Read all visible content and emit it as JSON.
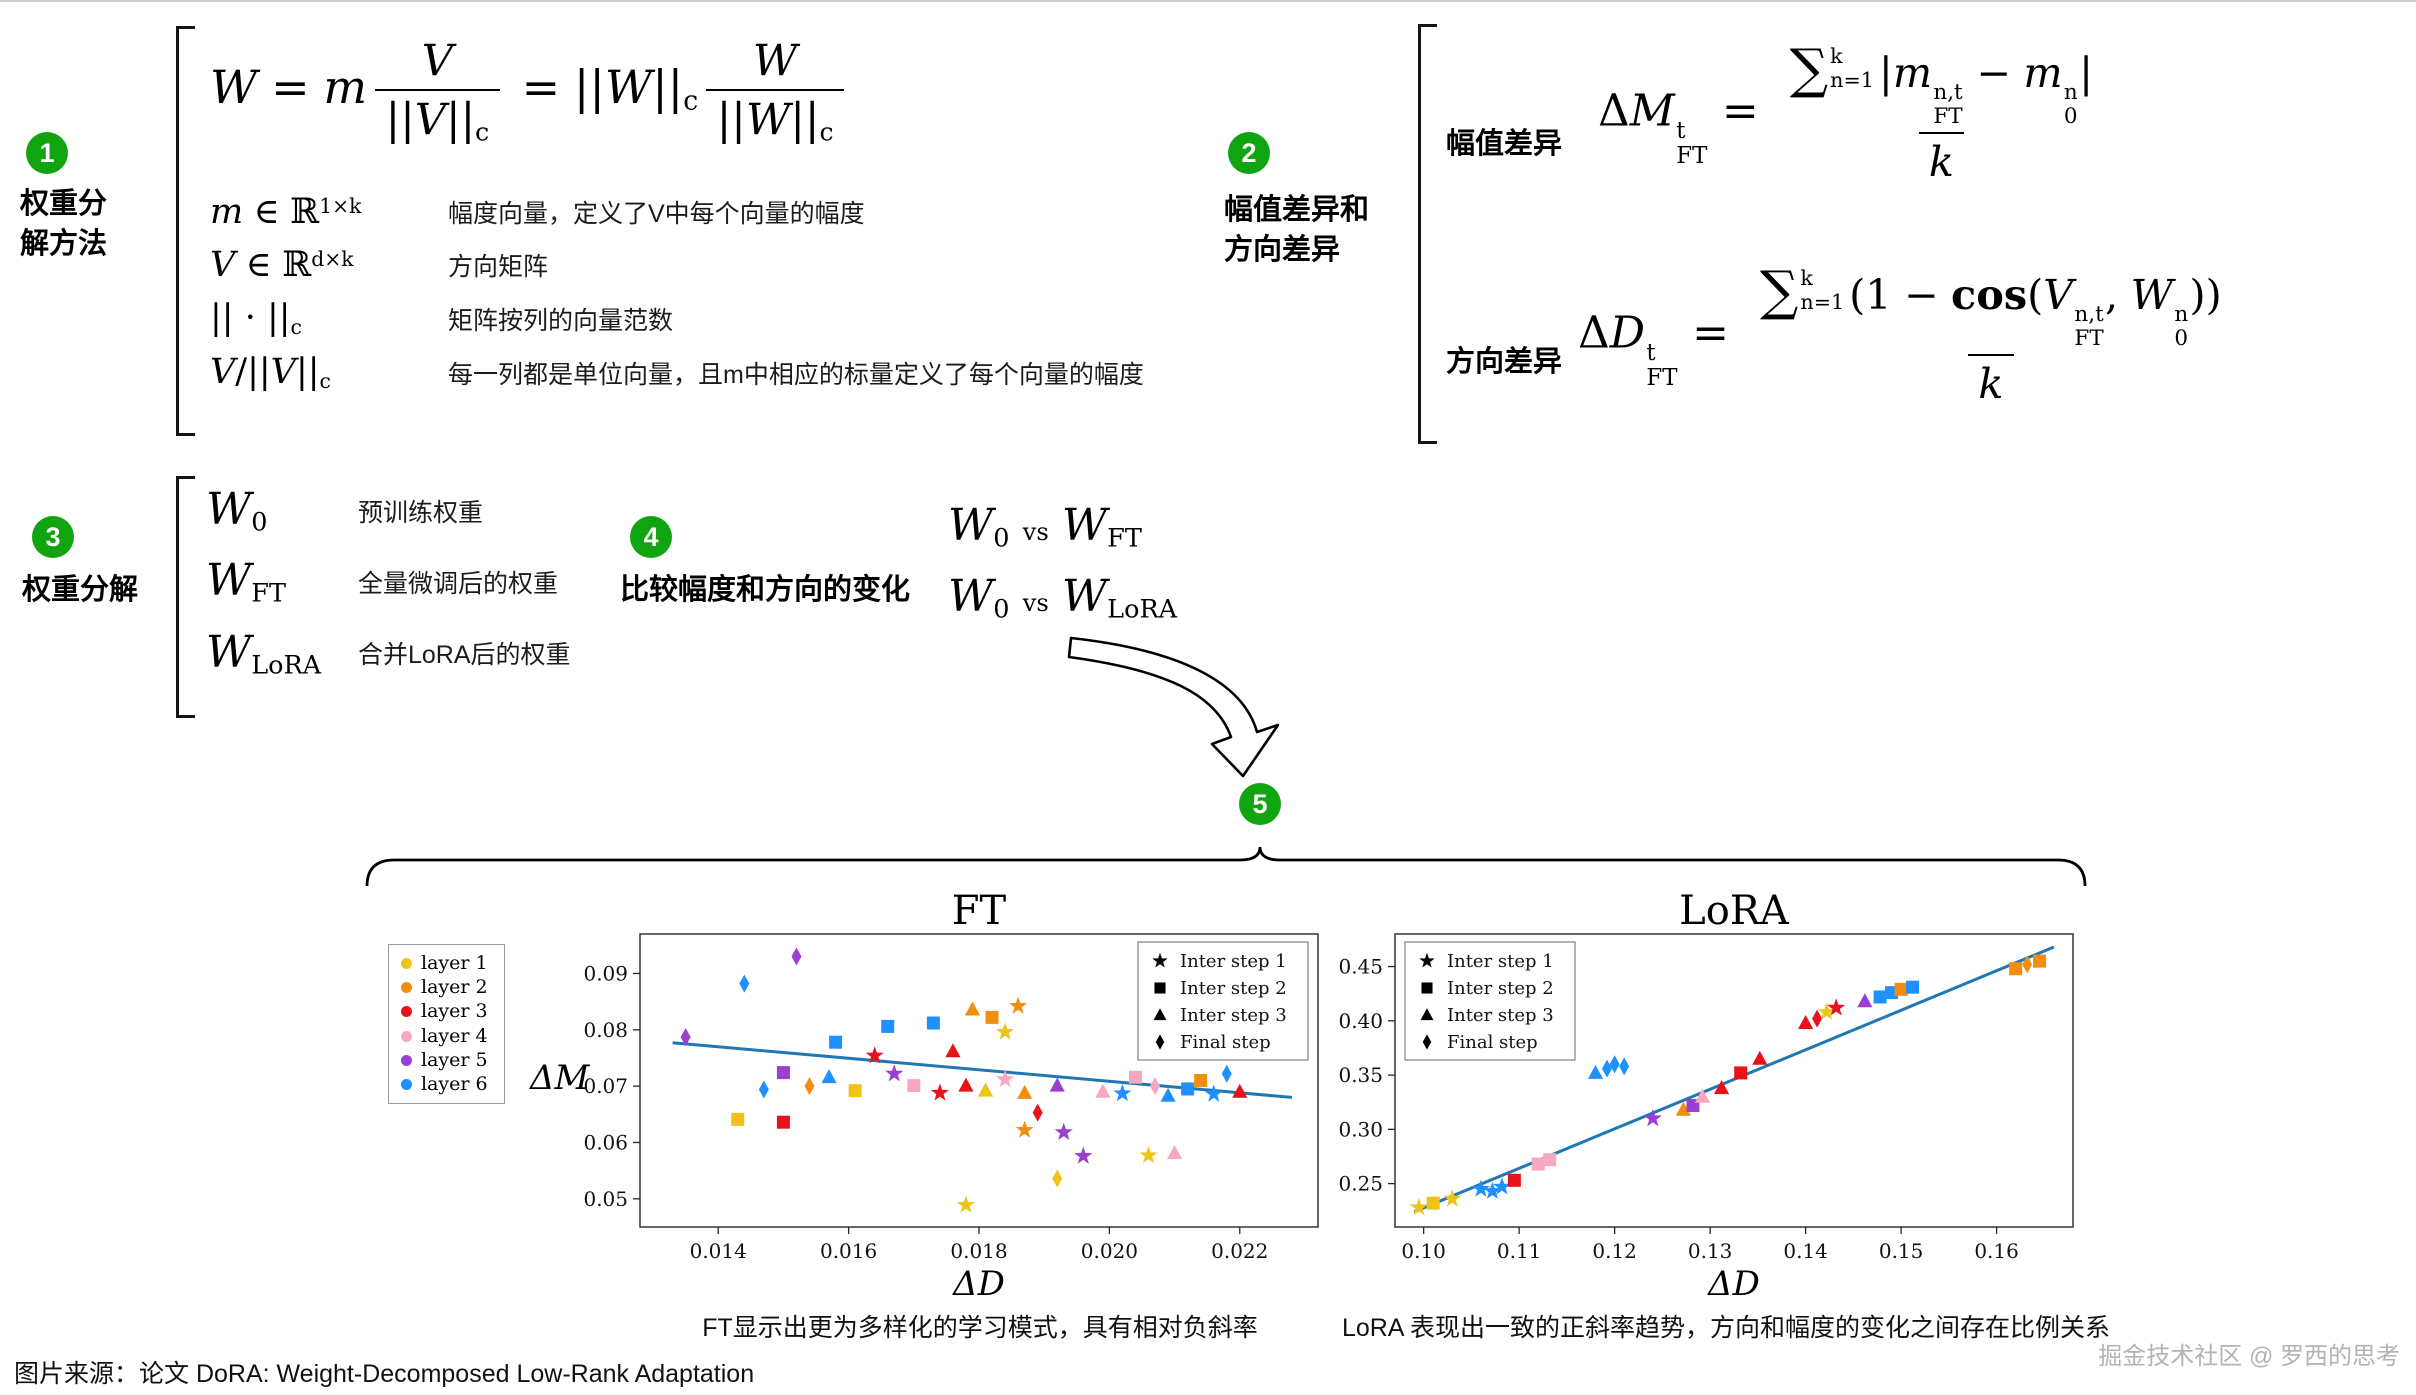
{
  "colors": {
    "badge_green": "#11a411",
    "trend_blue": "#1f77b4",
    "bracket": "#151515"
  },
  "sections": {
    "s1": {
      "badge": "1",
      "title": "权重分\n解方法",
      "formula": [
        {
          "v": "W"
        },
        {
          "sp": 1
        },
        {
          "t": "="
        },
        {
          "sp": 1
        },
        {
          "v": "m"
        },
        {
          "frac": {
            "n": [
              {
                "v": "V"
              }
            ],
            "d": [
              {
                "t": "||"
              },
              {
                "v": "V"
              },
              {
                "t": "||"
              },
              {
                "sub": "c"
              }
            ]
          }
        },
        {
          "sp": 1
        },
        {
          "t": "="
        },
        {
          "sp": 1
        },
        {
          "t": "||"
        },
        {
          "v": "W"
        },
        {
          "t": "||"
        },
        {
          "sub": "c"
        },
        {
          "frac": {
            "n": [
              {
                "v": "W"
              }
            ],
            "d": [
              {
                "t": "||"
              },
              {
                "v": "W"
              },
              {
                "t": "||"
              },
              {
                "sub": "c"
              }
            ]
          }
        }
      ],
      "rows": [
        {
          "math": [
            {
              "v": "m"
            },
            {
              "sp": 1
            },
            {
              "t": "∈"
            },
            {
              "sp": 1
            },
            {
              "t": "ℝ"
            },
            {
              "sup": "1×k"
            }
          ],
          "desc": "幅度向量，定义了V中每个向量的幅度"
        },
        {
          "math": [
            {
              "v": "V"
            },
            {
              "sp": 1
            },
            {
              "t": "∈"
            },
            {
              "sp": 1
            },
            {
              "t": "ℝ"
            },
            {
              "sup": "d×k"
            }
          ],
          "desc": "方向矩阵"
        },
        {
          "math": [
            {
              "t": "|| · ||"
            },
            {
              "sub": "c"
            }
          ],
          "desc": "矩阵按列的向量范数"
        },
        {
          "math": [
            {
              "v": "V"
            },
            {
              "t": "/||"
            },
            {
              "v": "V"
            },
            {
              "t": "||"
            },
            {
              "sub": "c"
            }
          ],
          "desc": "每一列都是单位向量，且m中相应的标量定义了每个向量的幅度"
        }
      ]
    },
    "s2": {
      "badge": "2",
      "title": "幅值差异和\n方向差异",
      "mag_label": "幅值差异",
      "dir_label": "方向差异",
      "mag_formula": [
        {
          "t": "Δ"
        },
        {
          "v": "M"
        },
        {
          "ss": [
            "t",
            "FT"
          ]
        },
        {
          "sp": 1
        },
        {
          "t": "="
        },
        {
          "sp": 1
        },
        {
          "frac": {
            "n": [
              {
                "sum": {
                  "sup": "k",
                  "sub": "n=1"
                }
              },
              {
                "t": "|"
              },
              {
                "v": "m"
              },
              {
                "ss": [
                  "n,t",
                  "FT"
                ]
              },
              {
                "sp": 1
              },
              {
                "t": "−"
              },
              {
                "sp": 1
              },
              {
                "v": "m"
              },
              {
                "ss": [
                  "n",
                  "0"
                ]
              },
              {
                "t": "|"
              }
            ],
            "d": [
              {
                "v": "k"
              }
            ]
          }
        }
      ],
      "dir_formula": [
        {
          "t": "Δ"
        },
        {
          "v": "D"
        },
        {
          "ss": [
            "t",
            "FT"
          ]
        },
        {
          "sp": 1
        },
        {
          "t": "="
        },
        {
          "sp": 1
        },
        {
          "frac": {
            "n": [
              {
                "sum": {
                  "sup": "k",
                  "sub": "n=1"
                }
              },
              {
                "t": "(1"
              },
              {
                "sp": 1
              },
              {
                "t": "−"
              },
              {
                "sp": 1
              },
              {
                "b": "cos"
              },
              {
                "t": "("
              },
              {
                "v": "V"
              },
              {
                "ss": [
                  "n,t",
                  "FT"
                ]
              },
              {
                "t": ","
              },
              {
                "sp": 1
              },
              {
                "v": "W"
              },
              {
                "ss": [
                  "n",
                  "0"
                ]
              },
              {
                "t": "))"
              }
            ],
            "d": [
              {
                "v": "k"
              }
            ]
          }
        }
      ]
    },
    "s3": {
      "badge": "3",
      "title": "权重分解",
      "rows": [
        {
          "math": [
            {
              "v": "W"
            },
            {
              "sub": "0"
            }
          ],
          "desc": "预训练权重"
        },
        {
          "math": [
            {
              "v": "W"
            },
            {
              "sub": "FT"
            }
          ],
          "desc": "全量微调后的权重"
        },
        {
          "math": [
            {
              "v": "W"
            },
            {
              "sub": "LoRA"
            }
          ],
          "desc": "合并LoRA后的权重"
        }
      ]
    },
    "s4": {
      "badge": "4",
      "title": "比较幅度和方向的变化",
      "comparisons": [
        [
          {
            "v": "W"
          },
          {
            "sub": "0"
          },
          {
            "sp": 1
          },
          {
            "s": "vs"
          },
          {
            "sp": 1
          },
          {
            "v": "W"
          },
          {
            "sub": "FT"
          }
        ],
        [
          {
            "v": "W"
          },
          {
            "sub": "0"
          },
          {
            "sp": 1
          },
          {
            "s": "vs"
          },
          {
            "sp": 1
          },
          {
            "v": "W"
          },
          {
            "sub": "LoRA"
          }
        ]
      ]
    },
    "s5": {
      "badge": "5"
    }
  },
  "legend": {
    "layers": [
      {
        "label": "layer 1",
        "color": "#efc319"
      },
      {
        "label": "layer 2",
        "color": "#f28d0e"
      },
      {
        "label": "layer 3",
        "color": "#e8131a"
      },
      {
        "label": "layer 4",
        "color": "#f7a8c0"
      },
      {
        "label": "layer 5",
        "color": "#9b3fd1"
      },
      {
        "label": "layer 6",
        "color": "#1e90ff"
      }
    ],
    "steps": [
      {
        "label": "Inter step 1",
        "marker": "star"
      },
      {
        "label": "Inter step 2",
        "marker": "square"
      },
      {
        "label": "Inter step 3",
        "marker": "triangle"
      },
      {
        "label": "Final step",
        "marker": "diamond"
      }
    ]
  },
  "chart_data": [
    {
      "type": "scatter",
      "title": "FT",
      "xlabel": "ΔD",
      "ylabel": "ΔM",
      "xlim": [
        0.0128,
        0.0232
      ],
      "ylim": [
        0.045,
        0.097
      ],
      "xticks": [
        0.014,
        0.016,
        0.018,
        0.02,
        0.022
      ],
      "xtick_labels": [
        "0.014",
        "0.016",
        "0.018",
        "0.020",
        "0.022"
      ],
      "yticks": [
        0.05,
        0.06,
        0.07,
        0.08,
        0.09
      ],
      "ytick_labels": [
        "0.05",
        "0.06",
        "0.07",
        "0.08",
        "0.09"
      ],
      "trend_line": {
        "from": [
          0.0133,
          0.0777
        ],
        "to": [
          0.0228,
          0.068
        ]
      },
      "marker_legend_pos": "upper-right",
      "show_layer_legend": true,
      "caption": "FT显示出更为多样化的学习模式，具有相对负斜率",
      "points": [
        [
          0.0152,
          0.093,
          4,
          3
        ],
        [
          0.0144,
          0.0882,
          5,
          3
        ],
        [
          0.0135,
          0.0787,
          4,
          3
        ],
        [
          0.0158,
          0.0778,
          5,
          1
        ],
        [
          0.0166,
          0.0806,
          5,
          1
        ],
        [
          0.0173,
          0.0812,
          5,
          1
        ],
        [
          0.0179,
          0.0836,
          1,
          2
        ],
        [
          0.0182,
          0.0822,
          1,
          1
        ],
        [
          0.0186,
          0.0842,
          1,
          0
        ],
        [
          0.0184,
          0.0796,
          0,
          0
        ],
        [
          0.0176,
          0.0762,
          2,
          2
        ],
        [
          0.0164,
          0.0754,
          2,
          0
        ],
        [
          0.015,
          0.0724,
          4,
          1
        ],
        [
          0.0157,
          0.0716,
          5,
          2
        ],
        [
          0.0147,
          0.0694,
          5,
          3
        ],
        [
          0.0143,
          0.0641,
          0,
          1
        ],
        [
          0.015,
          0.0636,
          2,
          1
        ],
        [
          0.0154,
          0.07,
          1,
          3
        ],
        [
          0.0161,
          0.0692,
          0,
          1
        ],
        [
          0.0167,
          0.0722,
          4,
          0
        ],
        [
          0.017,
          0.0701,
          3,
          1
        ],
        [
          0.0174,
          0.0688,
          2,
          0
        ],
        [
          0.0178,
          0.0701,
          2,
          2
        ],
        [
          0.0181,
          0.0692,
          0,
          2
        ],
        [
          0.0184,
          0.0712,
          3,
          0
        ],
        [
          0.0187,
          0.0688,
          1,
          2
        ],
        [
          0.0189,
          0.0653,
          2,
          3
        ],
        [
          0.0192,
          0.0701,
          4,
          2
        ],
        [
          0.0187,
          0.0622,
          1,
          0
        ],
        [
          0.0193,
          0.0618,
          4,
          0
        ],
        [
          0.0196,
          0.0576,
          4,
          0
        ],
        [
          0.0199,
          0.069,
          3,
          2
        ],
        [
          0.0202,
          0.0687,
          5,
          0
        ],
        [
          0.0204,
          0.0716,
          3,
          1
        ],
        [
          0.0207,
          0.07,
          3,
          3
        ],
        [
          0.0209,
          0.0683,
          5,
          2
        ],
        [
          0.0212,
          0.0695,
          5,
          1
        ],
        [
          0.0214,
          0.071,
          1,
          1
        ],
        [
          0.0216,
          0.0686,
          5,
          0
        ],
        [
          0.0218,
          0.0722,
          5,
          3
        ],
        [
          0.022,
          0.069,
          2,
          2
        ],
        [
          0.0206,
          0.0577,
          0,
          0
        ],
        [
          0.021,
          0.0581,
          3,
          2
        ],
        [
          0.0178,
          0.0489,
          0,
          0
        ],
        [
          0.0192,
          0.0536,
          0,
          3
        ]
      ]
    },
    {
      "type": "scatter",
      "title": "LoRA",
      "xlabel": "ΔD",
      "ylabel": "",
      "xlim": [
        0.097,
        0.168
      ],
      "ylim": [
        0.21,
        0.48
      ],
      "xticks": [
        0.1,
        0.11,
        0.12,
        0.13,
        0.14,
        0.15,
        0.16
      ],
      "xtick_labels": [
        "0.10",
        "0.11",
        "0.12",
        "0.13",
        "0.14",
        "0.15",
        "0.16"
      ],
      "yticks": [
        0.25,
        0.3,
        0.35,
        0.4,
        0.45
      ],
      "ytick_labels": [
        "0.25",
        "0.30",
        "0.35",
        "0.40",
        "0.45"
      ],
      "trend_line": {
        "from": [
          0.099,
          0.224
        ],
        "to": [
          0.166,
          0.468
        ]
      },
      "marker_legend_pos": "upper-left",
      "show_layer_legend": false,
      "caption": "LoRA 表现出一致的正斜率趋势，方向和幅度的变化之间存在比例关系",
      "points": [
        [
          0.0995,
          0.228,
          0,
          0
        ],
        [
          0.101,
          0.232,
          0,
          1
        ],
        [
          0.103,
          0.236,
          0,
          0
        ],
        [
          0.106,
          0.245,
          5,
          0
        ],
        [
          0.1072,
          0.243,
          5,
          0
        ],
        [
          0.1082,
          0.247,
          5,
          0
        ],
        [
          0.1095,
          0.253,
          2,
          1
        ],
        [
          0.112,
          0.268,
          3,
          1
        ],
        [
          0.1132,
          0.272,
          3,
          1
        ],
        [
          0.118,
          0.352,
          5,
          2
        ],
        [
          0.1192,
          0.356,
          5,
          3
        ],
        [
          0.12,
          0.36,
          5,
          3
        ],
        [
          0.121,
          0.358,
          5,
          3
        ],
        [
          0.124,
          0.31,
          4,
          0
        ],
        [
          0.1272,
          0.318,
          1,
          2
        ],
        [
          0.1282,
          0.322,
          4,
          1
        ],
        [
          0.1292,
          0.33,
          3,
          2
        ],
        [
          0.1312,
          0.338,
          2,
          2
        ],
        [
          0.1332,
          0.352,
          2,
          1
        ],
        [
          0.1352,
          0.365,
          2,
          2
        ],
        [
          0.14,
          0.398,
          2,
          2
        ],
        [
          0.1412,
          0.402,
          2,
          3
        ],
        [
          0.1422,
          0.408,
          0,
          0
        ],
        [
          0.1432,
          0.412,
          2,
          0
        ],
        [
          0.1462,
          0.418,
          4,
          2
        ],
        [
          0.1478,
          0.422,
          5,
          1
        ],
        [
          0.149,
          0.426,
          5,
          1
        ],
        [
          0.15,
          0.429,
          1,
          1
        ],
        [
          0.1512,
          0.431,
          5,
          1
        ],
        [
          0.162,
          0.448,
          1,
          1
        ],
        [
          0.1632,
          0.452,
          1,
          3
        ],
        [
          0.1645,
          0.455,
          1,
          1
        ]
      ]
    }
  ],
  "footer": {
    "source": "图片来源：论文 DoRA: Weight-Decomposed Low-Rank Adaptation",
    "watermark": "掘金技术社区 @ 罗西的思考"
  }
}
